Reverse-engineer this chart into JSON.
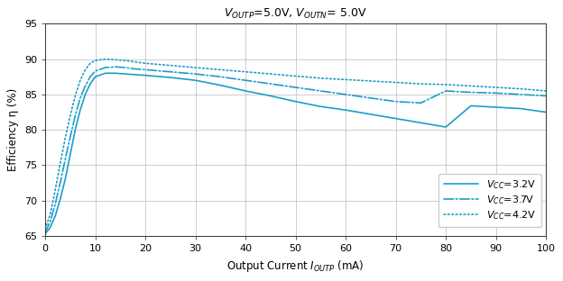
{
  "title_parts": [
    "V",
    "OUTP",
    "=5.0V, V",
    "OUTN",
    "= 5.0V"
  ],
  "xlabel_parts": [
    "Output Current I",
    "OUTP",
    " (mA)"
  ],
  "ylabel": "Efficiency η (%)",
  "xlim": [
    0,
    100
  ],
  "ylim": [
    65,
    95
  ],
  "xticks": [
    0,
    10,
    20,
    30,
    40,
    50,
    60,
    70,
    80,
    90,
    100
  ],
  "yticks": [
    65,
    70,
    75,
    80,
    85,
    90,
    95
  ],
  "legend": [
    {
      "label_parts": [
        "V",
        "CC",
        "=3.2V"
      ],
      "linestyle": "solid"
    },
    {
      "label_parts": [
        "V",
        "CC",
        "=3.7V"
      ],
      "linestyle": "dashdot"
    },
    {
      "label_parts": [
        "V",
        "CC",
        "=4.2V"
      ],
      "linestyle": "dotted"
    }
  ],
  "curves": {
    "vcc32": {
      "x": [
        0,
        1,
        2,
        3,
        4,
        5,
        6,
        7,
        8,
        9,
        10,
        12,
        14,
        16,
        18,
        20,
        25,
        30,
        35,
        40,
        45,
        50,
        55,
        60,
        65,
        70,
        75,
        80,
        85,
        90,
        95,
        100
      ],
      "y": [
        65.3,
        66.2,
        67.8,
        70.2,
        73.0,
        76.5,
        80.0,
        82.8,
        85.0,
        86.5,
        87.5,
        88.0,
        88.0,
        87.9,
        87.8,
        87.7,
        87.4,
        87.0,
        86.3,
        85.5,
        84.8,
        84.0,
        83.3,
        82.8,
        82.2,
        81.6,
        81.0,
        80.4,
        83.4,
        83.2,
        83.0,
        82.5
      ]
    },
    "vcc37": {
      "x": [
        0,
        1,
        2,
        3,
        4,
        5,
        6,
        7,
        8,
        9,
        10,
        12,
        14,
        16,
        18,
        20,
        25,
        30,
        35,
        40,
        45,
        50,
        55,
        60,
        65,
        70,
        75,
        80,
        85,
        90,
        95,
        100
      ],
      "y": [
        65.5,
        67.0,
        69.5,
        72.5,
        75.8,
        79.0,
        82.0,
        84.5,
        86.2,
        87.5,
        88.3,
        88.8,
        88.9,
        88.8,
        88.6,
        88.5,
        88.2,
        87.9,
        87.5,
        87.0,
        86.5,
        86.0,
        85.5,
        85.0,
        84.5,
        84.0,
        83.8,
        85.5,
        85.3,
        85.2,
        85.0,
        84.8
      ]
    },
    "vcc42": {
      "x": [
        0,
        1,
        2,
        3,
        4,
        5,
        6,
        7,
        8,
        9,
        10,
        12,
        14,
        16,
        18,
        20,
        25,
        30,
        35,
        40,
        45,
        50,
        55,
        60,
        65,
        70,
        75,
        80,
        85,
        90,
        95,
        100
      ],
      "y": [
        66.0,
        68.0,
        71.5,
        75.2,
        78.8,
        82.0,
        84.8,
        87.0,
        88.5,
        89.4,
        89.8,
        90.0,
        89.9,
        89.8,
        89.6,
        89.4,
        89.1,
        88.8,
        88.5,
        88.2,
        87.9,
        87.6,
        87.3,
        87.1,
        86.9,
        86.7,
        86.5,
        86.4,
        86.2,
        86.0,
        85.8,
        85.5
      ]
    }
  },
  "bg_color": "#ffffff",
  "grid_color": "#bbbbbb",
  "line_color": "#1a9ec9",
  "line_width": 1.2
}
